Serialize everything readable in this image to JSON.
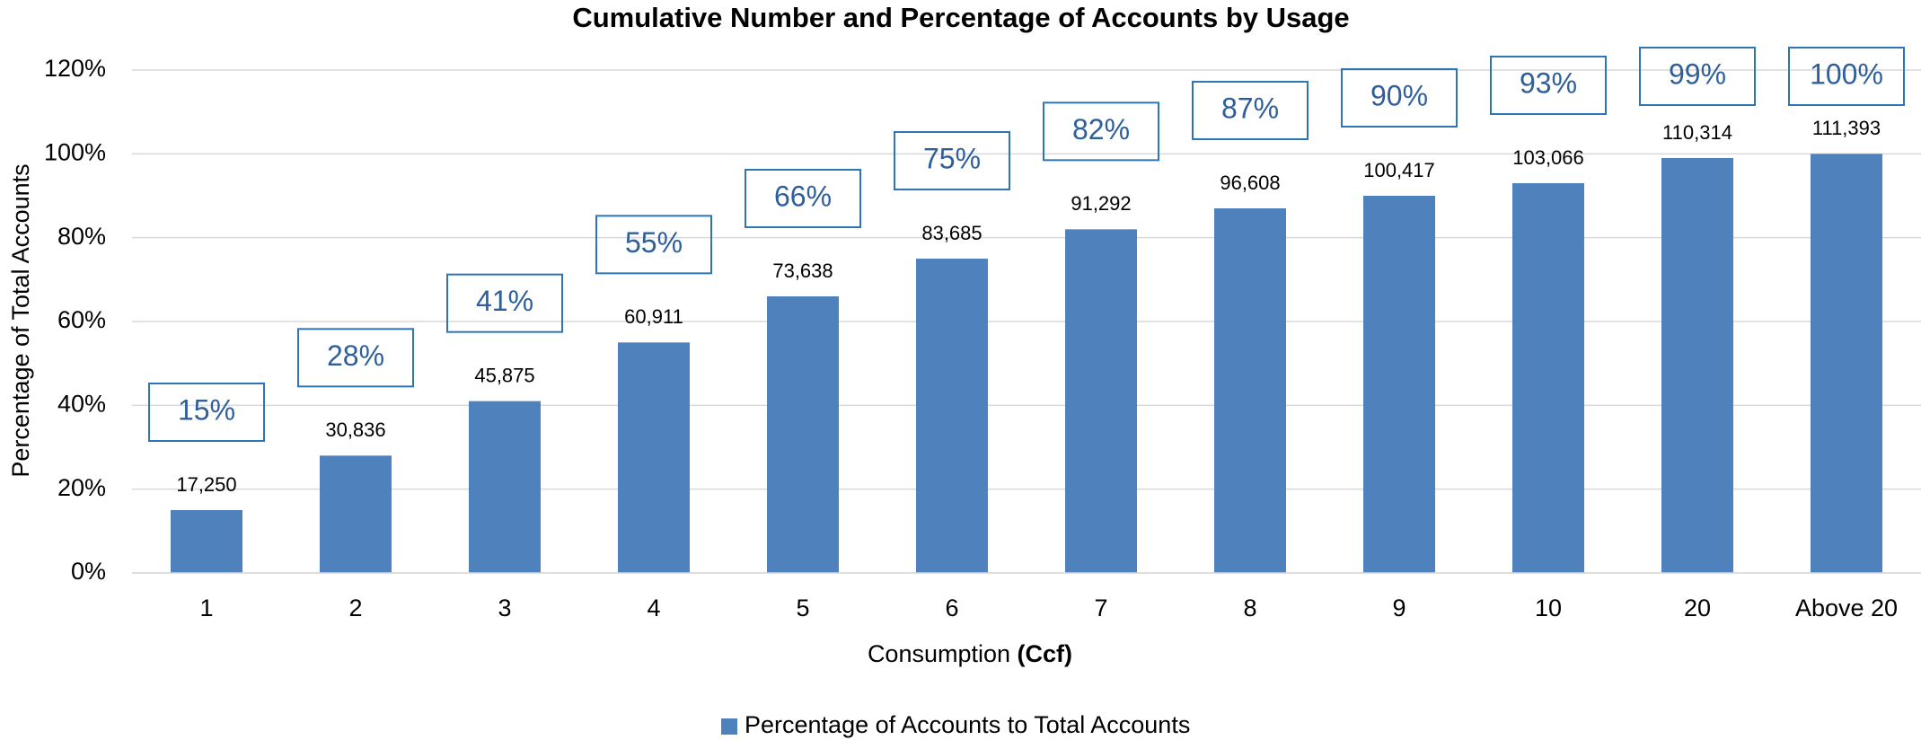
{
  "chart_data": {
    "type": "bar",
    "title": "Cumulative Number and Percentage of Accounts by Usage",
    "x_label": "Consumption",
    "x_label_unit": "(Ccf)",
    "y_label": "Percentage of Total Accounts",
    "categories": [
      "1",
      "2",
      "3",
      "4",
      "5",
      "6",
      "7",
      "8",
      "9",
      "10",
      "20",
      "Above 20"
    ],
    "series": [
      {
        "name": "Percentage of Accounts to Total Accounts",
        "color": "#4f81bd",
        "values": [
          15,
          28,
          41,
          55,
          66,
          75,
          82,
          87,
          90,
          93,
          99,
          100
        ],
        "value_labels": [
          "15%",
          "28%",
          "41%",
          "55%",
          "66%",
          "75%",
          "82%",
          "87%",
          "90%",
          "93%",
          "99%",
          "100%"
        ]
      }
    ],
    "counts": [
      17250,
      30836,
      45875,
      60911,
      73638,
      83685,
      91292,
      96608,
      100417,
      103066,
      110314,
      111393
    ],
    "count_labels": [
      "17,250",
      "30,836",
      "45,875",
      "60,911",
      "73,638",
      "83,685",
      "91,292",
      "96,608",
      "100,417",
      "103,066",
      "110,314",
      "111,393"
    ],
    "ylim": [
      0,
      120
    ],
    "yticks": [
      {
        "value": 0,
        "label": "0%"
      },
      {
        "value": 20,
        "label": "20%"
      },
      {
        "value": 40,
        "label": "40%"
      },
      {
        "value": 60,
        "label": "60%"
      },
      {
        "value": 80,
        "label": "80%"
      },
      {
        "value": 100,
        "label": "100%"
      },
      {
        "value": 120,
        "label": "120%"
      }
    ],
    "grid": true,
    "legend": "bottom"
  }
}
